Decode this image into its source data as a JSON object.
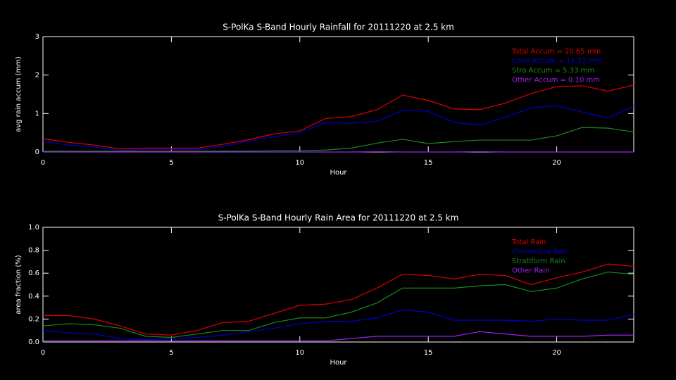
{
  "chart_data": [
    {
      "type": "line",
      "title": "S-PolKa S-Band Hourly Rainfall for 20111220 at 2.5 km",
      "xlabel": "Hour",
      "ylabel": "avg rain accum (mm)",
      "x": [
        0,
        1,
        2,
        3,
        4,
        5,
        6,
        7,
        8,
        9,
        10,
        11,
        12,
        13,
        14,
        15,
        16,
        17,
        18,
        19,
        20,
        21,
        22,
        23
      ],
      "xlim": [
        0,
        23
      ],
      "xticks": [
        0,
        5,
        10,
        15,
        20
      ],
      "ylim": [
        0,
        3
      ],
      "yticks": [
        0,
        1,
        2,
        3
      ],
      "series": [
        {
          "name": "Total Accum = 20.65 mm",
          "color": "#e00000",
          "values": [
            0.35,
            0.25,
            0.18,
            0.08,
            0.1,
            0.1,
            0.1,
            0.2,
            0.32,
            0.47,
            0.55,
            0.87,
            0.92,
            1.1,
            1.48,
            1.34,
            1.12,
            1.1,
            1.27,
            1.52,
            1.7,
            1.72,
            1.58,
            1.74
          ]
        },
        {
          "name": "Conv Accum = 15.21 mm",
          "color": "#0000d0",
          "values": [
            0.28,
            0.18,
            0.13,
            0.04,
            0.07,
            0.07,
            0.06,
            0.15,
            0.28,
            0.4,
            0.5,
            0.77,
            0.75,
            0.8,
            1.08,
            1.06,
            0.77,
            0.7,
            0.9,
            1.15,
            1.2,
            1.04,
            0.88,
            1.2
          ]
        },
        {
          "name": "Stra Accum = 5.33 mm",
          "color": "#1a8a1a",
          "values": [
            0.02,
            0.02,
            0.02,
            0.02,
            0.02,
            0.02,
            0.02,
            0.02,
            0.02,
            0.03,
            0.03,
            0.05,
            0.1,
            0.23,
            0.33,
            0.22,
            0.27,
            0.31,
            0.31,
            0.31,
            0.42,
            0.64,
            0.62,
            0.52
          ]
        },
        {
          "name": "Other Accum = 0.10 mm",
          "color": "#a020f0",
          "values": [
            0,
            0,
            0,
            0,
            0,
            0,
            0,
            0,
            0,
            0,
            0,
            0,
            0,
            0.01,
            0,
            0,
            0,
            0.01,
            0,
            0,
            0,
            0,
            0,
            0
          ]
        }
      ]
    },
    {
      "type": "line",
      "title": "S-PolKa S-Band Hourly Rain Area for 20111220 at 2.5 km",
      "xlabel": "Hour",
      "ylabel": "area fraction (%)",
      "x": [
        0,
        1,
        2,
        3,
        4,
        5,
        6,
        7,
        8,
        9,
        10,
        11,
        12,
        13,
        14,
        15,
        16,
        17,
        18,
        19,
        20,
        21,
        22,
        23
      ],
      "xlim": [
        0,
        23
      ],
      "xticks": [
        0,
        5,
        10,
        15,
        20
      ],
      "ylim": [
        0,
        1
      ],
      "yticks": [
        {
          "value": 0,
          "label": "0.0"
        },
        0.2,
        0.4,
        0.6,
        0.8,
        {
          "value": 1,
          "label": "1.0"
        }
      ],
      "series": [
        {
          "name": "Total Rain",
          "color": "#e00000",
          "values": [
            0.23,
            0.23,
            0.2,
            0.14,
            0.07,
            0.06,
            0.1,
            0.17,
            0.18,
            0.25,
            0.32,
            0.33,
            0.37,
            0.47,
            0.59,
            0.58,
            0.55,
            0.59,
            0.58,
            0.5,
            0.56,
            0.61,
            0.68,
            0.66
          ]
        },
        {
          "name": "Convective Rain",
          "color": "#0000d0",
          "values": [
            0.1,
            0.08,
            0.07,
            0.03,
            0.02,
            0.03,
            0.04,
            0.06,
            0.09,
            0.12,
            0.16,
            0.18,
            0.18,
            0.21,
            0.28,
            0.26,
            0.19,
            0.19,
            0.19,
            0.18,
            0.2,
            0.19,
            0.19,
            0.24
          ]
        },
        {
          "name": "Stratiform Rain",
          "color": "#1a8a1a",
          "values": [
            0.14,
            0.16,
            0.15,
            0.12,
            0.05,
            0.04,
            0.07,
            0.1,
            0.1,
            0.17,
            0.21,
            0.21,
            0.26,
            0.34,
            0.47,
            0.47,
            0.47,
            0.49,
            0.5,
            0.44,
            0.47,
            0.55,
            0.61,
            0.59
          ]
        },
        {
          "name": "Other Rain",
          "color": "#a020f0",
          "values": [
            0.01,
            0.01,
            0.01,
            0.01,
            0.01,
            0.01,
            0.01,
            0.01,
            0.01,
            0.01,
            0.01,
            0.01,
            0.03,
            0.05,
            0.05,
            0.05,
            0.05,
            0.09,
            0.07,
            0.05,
            0.05,
            0.05,
            0.06,
            0.06
          ]
        }
      ]
    }
  ]
}
